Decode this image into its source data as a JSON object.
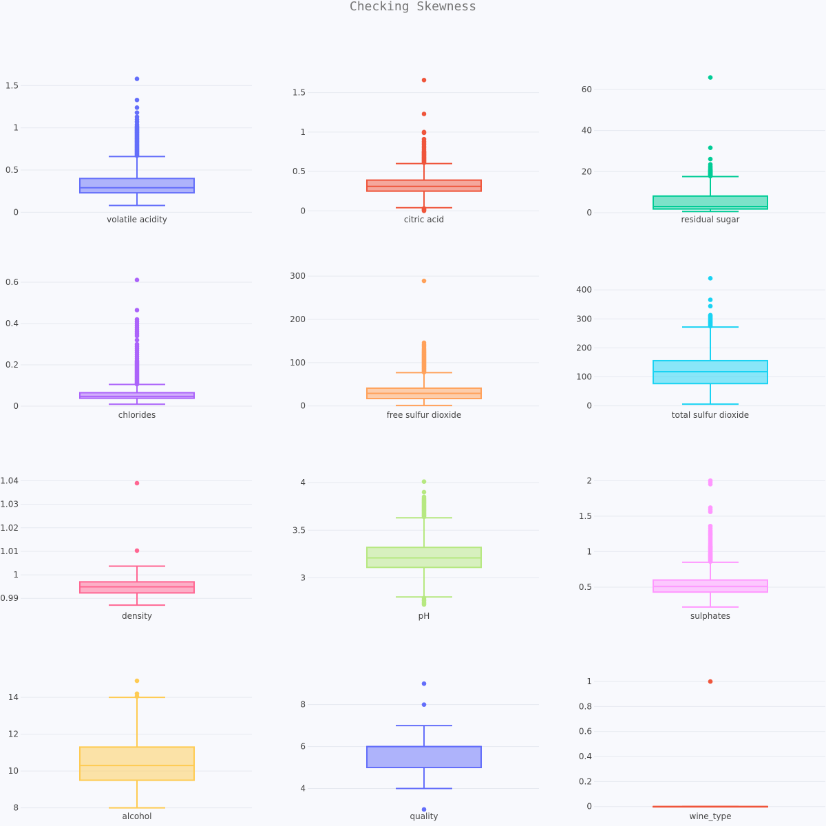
{
  "title": "Checking Skewness",
  "chart_data": [
    {
      "type": "box",
      "category": "volatile acidity",
      "color": "#636efa",
      "ylim": [
        -0.03,
        1.65
      ],
      "yticks": [
        0,
        0.5,
        1,
        1.5
      ],
      "ytick_labels": [
        "0",
        "0.5",
        "1",
        "1.5"
      ],
      "min": 0.08,
      "q1": 0.23,
      "median": 0.29,
      "q3": 0.4,
      "max": 0.66,
      "outliers": [
        0.67,
        0.68,
        0.69,
        0.7,
        0.71,
        0.72,
        0.73,
        0.74,
        0.75,
        0.76,
        0.77,
        0.78,
        0.79,
        0.8,
        0.81,
        0.82,
        0.83,
        0.84,
        0.85,
        0.86,
        0.87,
        0.88,
        0.89,
        0.9,
        0.91,
        0.92,
        0.93,
        0.94,
        0.95,
        0.96,
        0.97,
        0.98,
        0.99,
        1.0,
        1.01,
        1.02,
        1.04,
        1.07,
        1.1,
        1.13,
        1.18,
        1.24,
        1.33,
        1.58
      ]
    },
    {
      "type": "box",
      "category": "citric acid",
      "color": "#ef553b",
      "ylim": [
        -0.05,
        1.75
      ],
      "yticks": [
        0,
        0.5,
        1,
        1.5
      ],
      "ytick_labels": [
        "0",
        "0.5",
        "1",
        "1.5"
      ],
      "min": 0.04,
      "q1": 0.25,
      "median": 0.31,
      "q3": 0.39,
      "max": 0.6,
      "outliers": [
        0,
        0.01,
        0.02,
        0.03,
        0.61,
        0.62,
        0.63,
        0.64,
        0.65,
        0.66,
        0.67,
        0.68,
        0.69,
        0.7,
        0.71,
        0.72,
        0.73,
        0.74,
        0.75,
        0.76,
        0.78,
        0.8,
        0.82,
        0.84,
        0.86,
        0.88,
        0.91,
        0.99,
        1.0,
        1.23,
        1.66
      ]
    },
    {
      "type": "box",
      "category": "residual sugar",
      "color": "#00cc96",
      "ylim": [
        -1,
        68
      ],
      "yticks": [
        0,
        20,
        40,
        60
      ],
      "ytick_labels": [
        "0",
        "20",
        "40",
        "60"
      ],
      "min": 0.6,
      "q1": 1.8,
      "median": 3.0,
      "q3": 8.1,
      "max": 17.6,
      "outliers": [
        17.8,
        18.0,
        18.2,
        18.4,
        18.6,
        18.8,
        19.0,
        19.2,
        19.4,
        19.6,
        19.8,
        20.0,
        20.2,
        20.4,
        20.6,
        20.8,
        21.0,
        21.5,
        22.0,
        22.6,
        23.5,
        26.1,
        31.6,
        65.8
      ]
    },
    {
      "type": "box",
      "category": "chlorides",
      "color": "#ab63fa",
      "ylim": [
        -0.02,
        0.64
      ],
      "yticks": [
        0,
        0.2,
        0.4,
        0.6
      ],
      "ytick_labels": [
        "0",
        "0.2",
        "0.4",
        "0.6"
      ],
      "min": 0.009,
      "q1": 0.038,
      "median": 0.047,
      "q3": 0.065,
      "max": 0.105,
      "outliers": [
        0.106,
        0.11,
        0.115,
        0.12,
        0.125,
        0.13,
        0.135,
        0.14,
        0.145,
        0.15,
        0.155,
        0.16,
        0.165,
        0.17,
        0.175,
        0.18,
        0.185,
        0.19,
        0.195,
        0.2,
        0.205,
        0.21,
        0.215,
        0.22,
        0.23,
        0.24,
        0.25,
        0.26,
        0.27,
        0.28,
        0.29,
        0.3,
        0.32,
        0.34,
        0.35,
        0.36,
        0.37,
        0.38,
        0.39,
        0.4,
        0.41,
        0.42,
        0.465,
        0.611
      ]
    },
    {
      "type": "box",
      "category": "free sulfur dioxide",
      "color": "#ffa15a",
      "ylim": [
        -10,
        305
      ],
      "yticks": [
        0,
        100,
        200,
        300
      ],
      "ytick_labels": [
        "0",
        "100",
        "200",
        "300"
      ],
      "min": 1,
      "q1": 17,
      "median": 29,
      "q3": 41,
      "max": 77,
      "outliers": [
        78,
        80,
        82,
        84,
        86,
        88,
        90,
        92,
        94,
        96,
        98,
        100,
        102,
        104,
        106,
        108,
        110,
        112,
        114,
        116,
        118,
        120,
        122,
        124,
        126,
        128,
        131,
        134,
        138,
        141,
        146,
        289
      ]
    },
    {
      "type": "box",
      "category": "total sulfur dioxide",
      "color": "#19d3f3",
      "ylim": [
        -15,
        455
      ],
      "yticks": [
        0,
        100,
        200,
        300,
        400
      ],
      "ytick_labels": [
        "0",
        "100",
        "200",
        "300",
        "400"
      ],
      "min": 6,
      "q1": 77,
      "median": 118,
      "q3": 156,
      "max": 272,
      "outliers": [
        275,
        278,
        282,
        285,
        288,
        291,
        294,
        297,
        300,
        303,
        307,
        310,
        313,
        344,
        366,
        440
      ]
    },
    {
      "type": "box",
      "category": "density",
      "color": "#ff6692",
      "ylim": [
        0.9845,
        1.0425
      ],
      "yticks": [
        0.99,
        1,
        1.01,
        1.02,
        1.03,
        1.04
      ],
      "ytick_labels": [
        "0.99",
        "1",
        "1.01",
        "1.02",
        "1.03",
        "1.04"
      ],
      "min": 0.9871,
      "q1": 0.9923,
      "median": 0.9949,
      "q3": 0.997,
      "max": 1.0037,
      "outliers": [
        1.0103,
        1.039
      ]
    },
    {
      "type": "box",
      "category": "pH",
      "color": "#b6e880",
      "ylim": [
        2.65,
        4.08
      ],
      "yticks": [
        3,
        3.5,
        4
      ],
      "ytick_labels": [
        "3",
        "3.5",
        "4"
      ],
      "min": 2.8,
      "q1": 3.11,
      "median": 3.21,
      "q3": 3.32,
      "max": 3.63,
      "outliers": [
        2.72,
        2.73,
        2.74,
        2.76,
        2.77,
        2.79,
        3.64,
        3.65,
        3.66,
        3.67,
        3.68,
        3.69,
        3.7,
        3.71,
        3.72,
        3.73,
        3.74,
        3.75,
        3.76,
        3.77,
        3.78,
        3.79,
        3.8,
        3.81,
        3.82,
        3.83,
        3.85,
        3.9,
        4.01
      ]
    },
    {
      "type": "box",
      "category": "sulphates",
      "color": "#ff97ff",
      "ylim": [
        0.16,
        2.08
      ],
      "yticks": [
        0.5,
        1,
        1.5,
        2
      ],
      "ytick_labels": [
        "0.5",
        "1",
        "1.5",
        "2"
      ],
      "min": 0.22,
      "q1": 0.43,
      "median": 0.51,
      "q3": 0.6,
      "max": 0.85,
      "outliers": [
        0.86,
        0.87,
        0.88,
        0.89,
        0.9,
        0.91,
        0.92,
        0.93,
        0.94,
        0.95,
        0.96,
        0.97,
        0.98,
        0.99,
        1.0,
        1.01,
        1.02,
        1.03,
        1.04,
        1.05,
        1.06,
        1.07,
        1.08,
        1.1,
        1.12,
        1.14,
        1.16,
        1.18,
        1.2,
        1.22,
        1.24,
        1.26,
        1.28,
        1.3,
        1.33,
        1.36,
        1.56,
        1.59,
        1.62,
        1.95,
        1.98,
        2.0
      ]
    },
    {
      "type": "box",
      "category": "alcohol",
      "color": "#fecb52",
      "ylim": [
        7.8,
        15.2
      ],
      "yticks": [
        8,
        10,
        12,
        14
      ],
      "ytick_labels": [
        "8",
        "10",
        "12",
        "14"
      ],
      "min": 8.0,
      "q1": 9.5,
      "median": 10.3,
      "q3": 11.3,
      "max": 14.0,
      "outliers": [
        14.05,
        14.2,
        14.9
      ]
    },
    {
      "type": "box",
      "category": "quality",
      "color": "#636efa",
      "ylim": [
        2.9,
        9.4
      ],
      "yticks": [
        4,
        6,
        8
      ],
      "ytick_labels": [
        "4",
        "6",
        "8"
      ],
      "min": 4,
      "q1": 5,
      "median": 6,
      "q3": 6,
      "max": 7,
      "outliers": [
        3,
        8,
        9
      ]
    },
    {
      "type": "box",
      "category": "wine_type",
      "color": "#ef553b",
      "ylim": [
        -0.04,
        1.05
      ],
      "yticks": [
        0,
        0.2,
        0.4,
        0.6,
        0.8,
        1
      ],
      "ytick_labels": [
        "0",
        "0.2",
        "0.4",
        "0.6",
        "0.8",
        "1"
      ],
      "min": 0,
      "q1": 0,
      "median": 0,
      "q3": 0,
      "max": 0,
      "outliers": [
        1
      ]
    }
  ]
}
